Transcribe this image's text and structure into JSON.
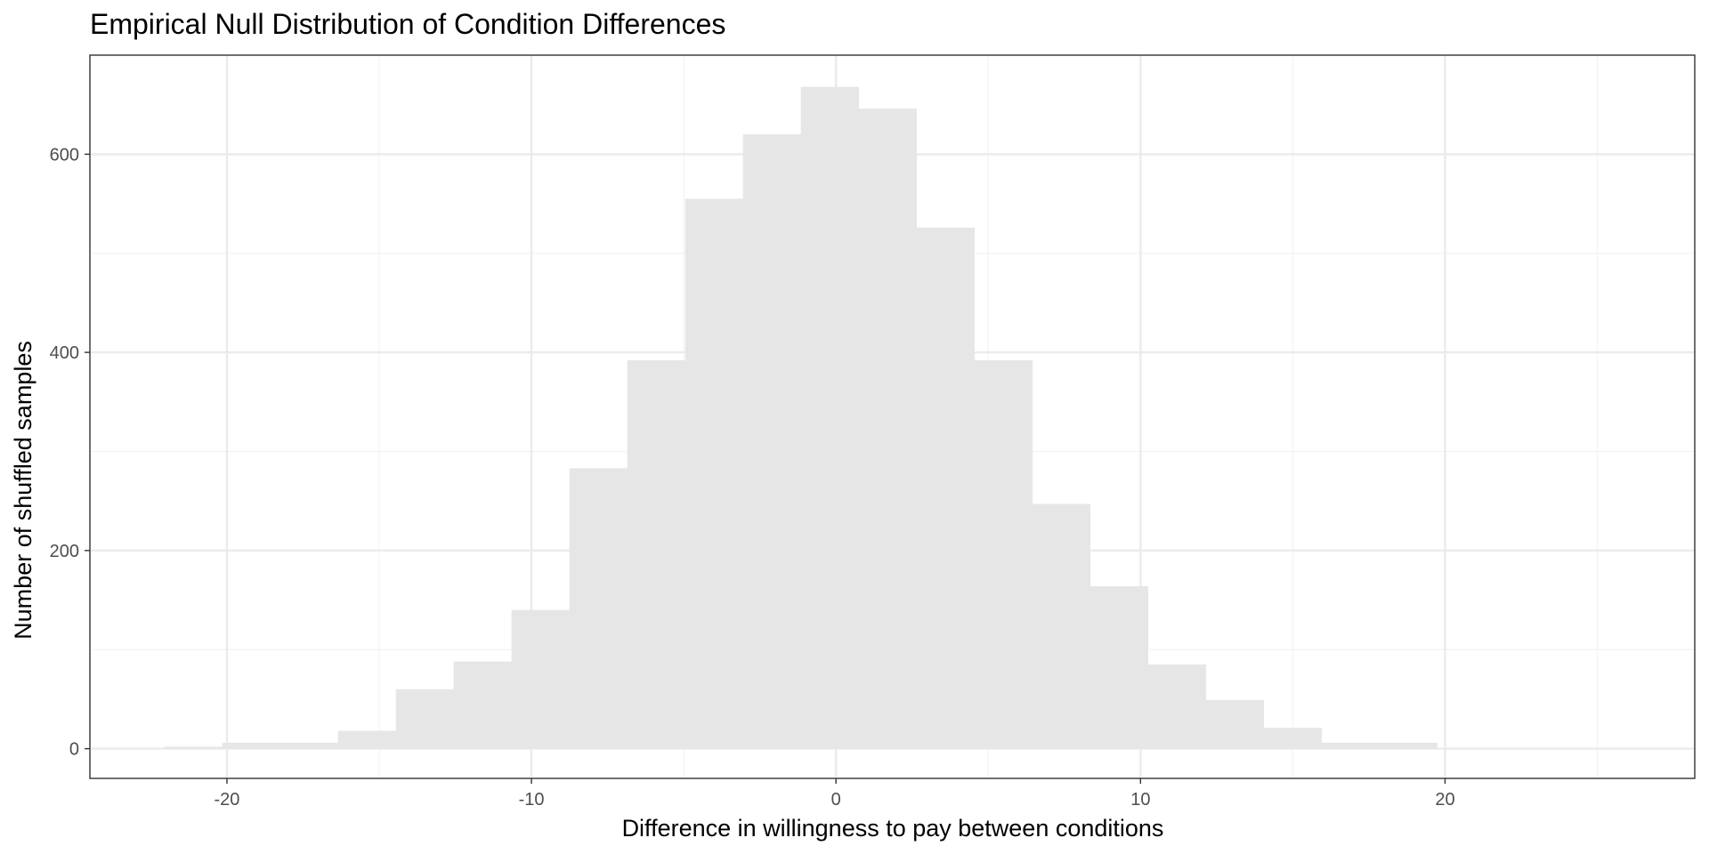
{
  "chart_data": {
    "type": "bar",
    "title": "Empirical Null Distribution of Condition Differences",
    "xlabel": "Difference in willingness to pay between conditions",
    "ylabel": "Number of shuffled samples",
    "xlim": [
      -24.5,
      28.2
    ],
    "ylim": [
      -30,
      700
    ],
    "x_ticks": [
      -20,
      -10,
      0,
      10,
      20
    ],
    "x_tick_labels": [
      "-20",
      "-10",
      "0",
      "10",
      "20"
    ],
    "x_minor_gridlines": [
      -15,
      -5,
      5,
      15,
      25
    ],
    "y_ticks": [
      0,
      200,
      400,
      600
    ],
    "y_tick_labels": [
      "0",
      "200",
      "400",
      "600"
    ],
    "y_minor_gridlines": [
      100,
      300,
      500
    ],
    "grid": true,
    "theme": "black-and-white",
    "bin_width": 1.91,
    "bars": [
      {
        "x": -21.1,
        "count": 2
      },
      {
        "x": -19.2,
        "count": 6
      },
      {
        "x": -17.3,
        "count": 6
      },
      {
        "x": -15.4,
        "count": 18
      },
      {
        "x": -13.5,
        "count": 60
      },
      {
        "x": -11.6,
        "count": 88
      },
      {
        "x": -9.7,
        "count": 140
      },
      {
        "x": -7.8,
        "count": 283
      },
      {
        "x": -5.9,
        "count": 392
      },
      {
        "x": -4.0,
        "count": 555
      },
      {
        "x": -2.1,
        "count": 620
      },
      {
        "x": -0.2,
        "count": 668
      },
      {
        "x": 1.7,
        "count": 646
      },
      {
        "x": 3.6,
        "count": 526
      },
      {
        "x": 5.5,
        "count": 392
      },
      {
        "x": 7.4,
        "count": 247
      },
      {
        "x": 9.3,
        "count": 164
      },
      {
        "x": 11.2,
        "count": 85
      },
      {
        "x": 13.1,
        "count": 49
      },
      {
        "x": 15.0,
        "count": 21
      },
      {
        "x": 16.9,
        "count": 6
      },
      {
        "x": 18.8,
        "count": 6
      }
    ],
    "colors": {
      "bar_fill": "#e6e6e6",
      "panel_border": "#333333",
      "grid_major": "#ebebeb",
      "grid_minor": "#f3f3f3",
      "tick_label": "#4d4d4d",
      "text": "#000000"
    }
  }
}
